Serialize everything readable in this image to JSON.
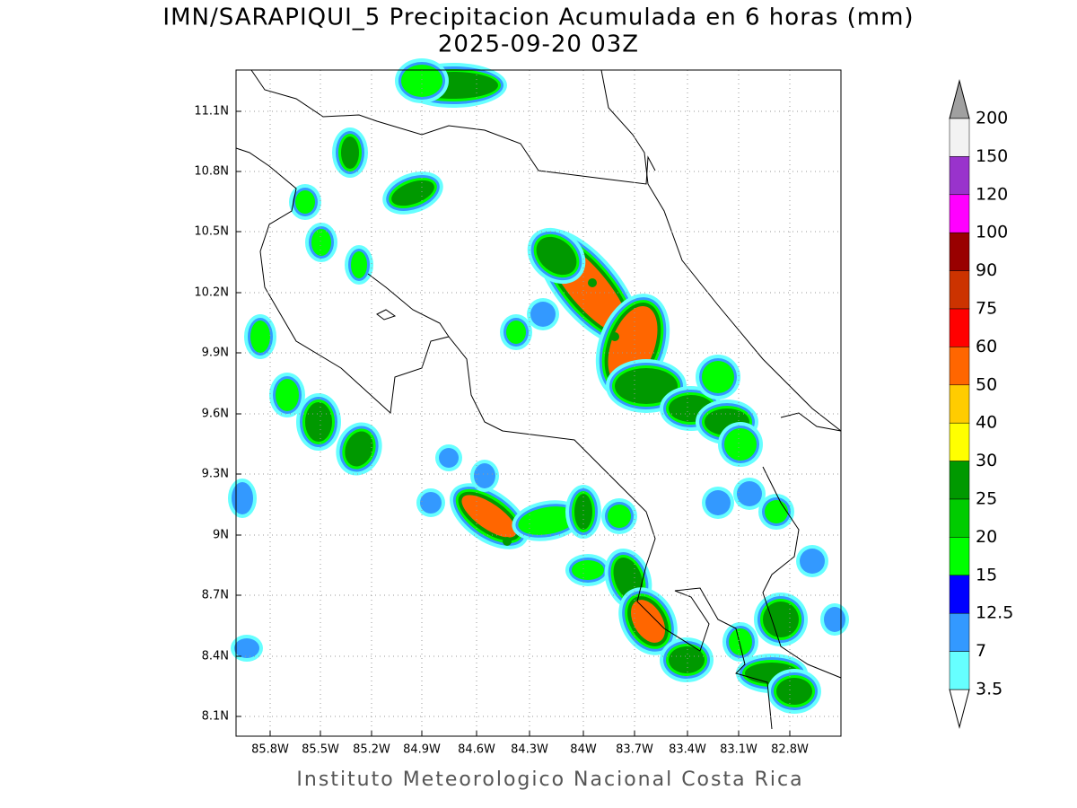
{
  "header": {
    "title": "IMN/SARAPIQUI_5 Precipitacion Acumulada en 6 horas (mm)",
    "subtitle": "2025-09-20 03Z"
  },
  "map": {
    "lon_ticks": [
      "85.8W",
      "85.5W",
      "85.2W",
      "84.9W",
      "84.6W",
      "84.3W",
      "84W",
      "83.7W",
      "83.4W",
      "83.1W",
      "82.8W"
    ],
    "lat_ticks": [
      "11.1N",
      "10.8N",
      "10.5N",
      "10.2N",
      "9.9N",
      "9.6N",
      "9.3N",
      "9N",
      "8.7N",
      "8.4N",
      "8.1N"
    ]
  },
  "colorbar": {
    "labels": [
      "200",
      "150",
      "120",
      "100",
      "90",
      "75",
      "60",
      "50",
      "40",
      "30",
      "25",
      "20",
      "15",
      "12.5",
      "7",
      "3.5"
    ],
    "segment_colors": [
      "#f2f2f2",
      "#9933cc",
      "#ff00ff",
      "#990000",
      "#cc3300",
      "#ff0000",
      "#ff6600",
      "#ffcc00",
      "#ffff00",
      "#009900",
      "#00cc00",
      "#00ff00",
      "#0000ff",
      "#3399ff",
      "#66ffff"
    ],
    "top_arrow_color": "#a0a0a0",
    "bottom_arrow_color": "#ffffff"
  },
  "footer": "Instituto Meteorologico Nacional Costa Rica"
}
